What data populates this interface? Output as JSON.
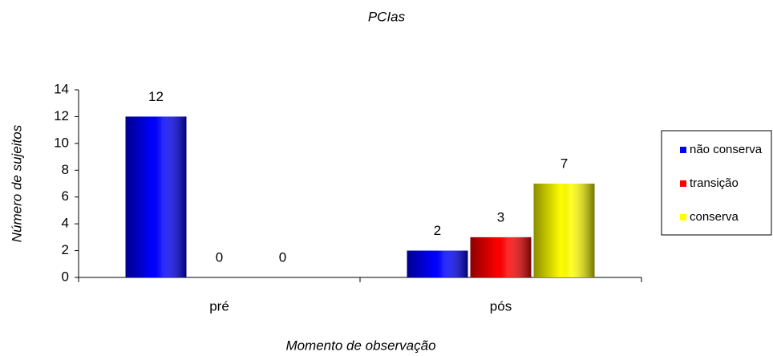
{
  "chart_data": {
    "type": "bar",
    "title": "PCIas",
    "xlabel": "Momento de observação",
    "ylabel": "Número de sujeitos",
    "categories": [
      "pré",
      "pós"
    ],
    "series": [
      {
        "name": "não conserva",
        "color": "#0000ff",
        "values": [
          12,
          2
        ]
      },
      {
        "name": "transição",
        "color": "#ff0000",
        "values": [
          0,
          3
        ]
      },
      {
        "name": "conserva",
        "color": "#ffff00",
        "values": [
          0,
          7
        ]
      }
    ],
    "ylim": [
      0,
      14
    ],
    "yticks": [
      0,
      2,
      4,
      6,
      8,
      10,
      12,
      14
    ],
    "grid": false,
    "legend": "right",
    "data_labels": true
  }
}
